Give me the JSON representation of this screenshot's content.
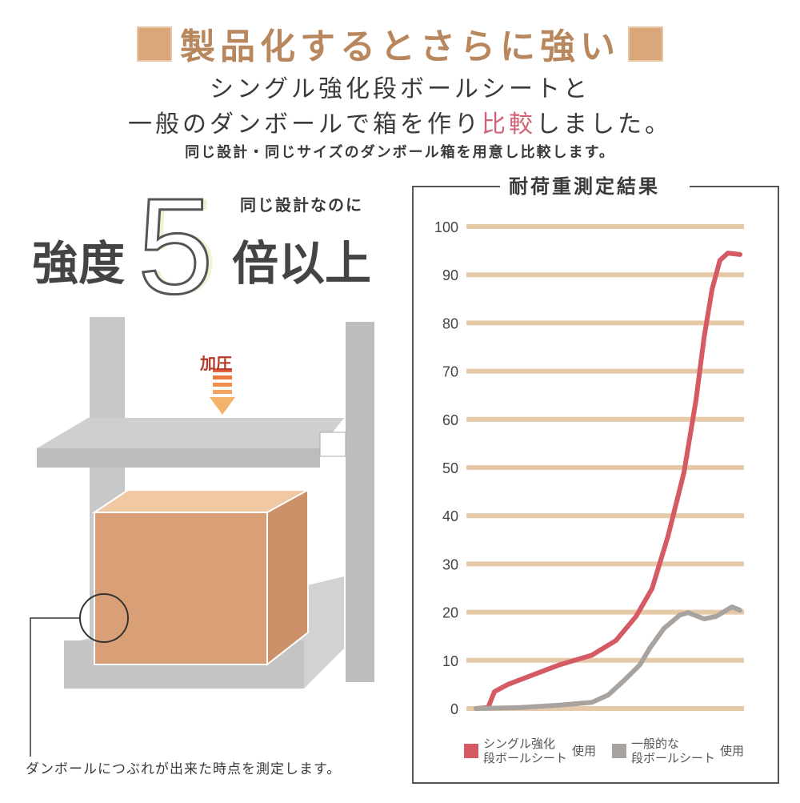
{
  "header": {
    "title": "製品化するとさらに強い",
    "line1": "シングル強化段ボールシートと",
    "line2_pre": "一般のダンボールで箱を作り",
    "line2_highlight": "比較",
    "line2_post": "しました。",
    "line3": "同じ設計・同じサイズのダンボール箱を用意し比較します。"
  },
  "hero": {
    "note_small": "同じ設計なのに",
    "left": "強度",
    "number": "5",
    "right": "倍以上"
  },
  "illustration": {
    "press_label": "加圧",
    "footnote": "ダンボールにつぶれが出来た時点を測定します。"
  },
  "colors": {
    "title": "#b8875e",
    "highlight": "#d2647a",
    "grid": "#e6c9a8",
    "series_reinforced": "#d45a64",
    "series_normal": "#a9a39f"
  },
  "chart_data": {
    "type": "line",
    "title": "耐荷重測定結果",
    "xlabel": "",
    "ylabel": "",
    "ylim": [
      0,
      100
    ],
    "yticks": [
      "0",
      "10",
      "20",
      "30",
      "40",
      "50",
      "60",
      "70",
      "80",
      "90",
      "100"
    ],
    "grid": true,
    "legend_placement": "bottom",
    "xlim": [
      0,
      100
    ],
    "series": [
      {
        "name_line1": "シングル強化",
        "name_line2": "段ボールシート",
        "suffix": "使用",
        "color": "#d45a64",
        "x": [
          0,
          4.5,
          6.9,
          11.9,
          19.4,
          31.3,
          43.3,
          52.2,
          59.7,
          65.7,
          71.6,
          77.6,
          82.1,
          85.1,
          88.1,
          91,
          94,
          98.5
        ],
        "y": [
          0,
          0.2,
          3.5,
          5,
          6.6,
          9.1,
          11.1,
          14.1,
          19.1,
          24.9,
          35.7,
          49,
          64,
          77,
          87,
          93,
          94.5,
          94.2
        ]
      },
      {
        "name_line1": "一般的な",
        "name_line2": "段ボールシート",
        "suffix": "使用",
        "color": "#a9a39f",
        "x": [
          0,
          16.4,
          31.3,
          43.3,
          49.3,
          55.2,
          61.2,
          64.8,
          70.1,
          76.1,
          79.1,
          85.1,
          89.6,
          95.5,
          98.5
        ],
        "y": [
          0,
          0.2,
          0.7,
          1.3,
          2.8,
          5.8,
          9.1,
          12.5,
          16.6,
          19.4,
          19.9,
          18.6,
          19.1,
          21.1,
          20.4
        ]
      }
    ]
  }
}
